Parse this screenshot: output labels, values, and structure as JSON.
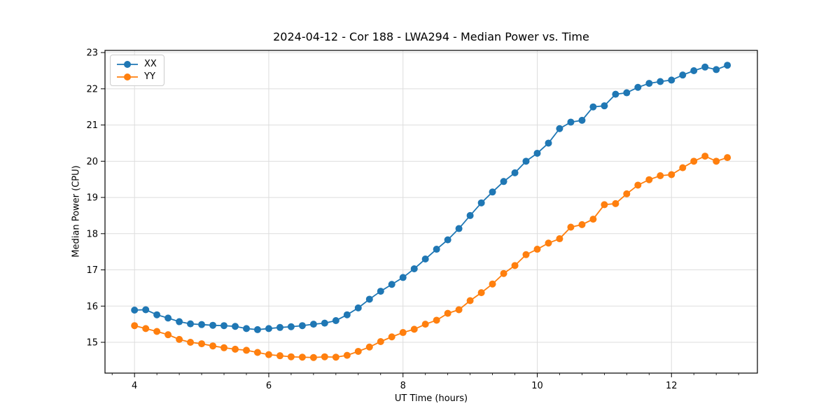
{
  "figure": {
    "title": "2024-04-12 - Cor 188 - LWA294 - Median Power vs. Time",
    "xlabel": "UT Time (hours)",
    "ylabel": "Median Power (CPU)"
  },
  "chart_data": {
    "type": "line",
    "title": "2024-04-12 - Cor 188 - LWA294 - Median Power vs. Time",
    "xlabel": "UT Time (hours)",
    "ylabel": "Median Power (CPU)",
    "xlim": [
      3.56,
      13.28
    ],
    "ylim": [
      14.15,
      23.06
    ],
    "xticks": [
      4,
      6,
      8,
      10,
      12
    ],
    "yticks": [
      15,
      16,
      17,
      18,
      19,
      20,
      21,
      22,
      23
    ],
    "x_minor_tick_step": 0.33333,
    "grid": true,
    "legend_position": "upper left",
    "background": "#ffffff",
    "grid_color": "#dddddd",
    "x": [
      4.0,
      4.167,
      4.333,
      4.5,
      4.667,
      4.833,
      5.0,
      5.167,
      5.333,
      5.5,
      5.667,
      5.833,
      6.0,
      6.167,
      6.333,
      6.5,
      6.667,
      6.833,
      7.0,
      7.167,
      7.333,
      7.5,
      7.667,
      7.833,
      8.0,
      8.167,
      8.333,
      8.5,
      8.667,
      8.833,
      9.0,
      9.167,
      9.333,
      9.5,
      9.667,
      9.833,
      10.0,
      10.167,
      10.333,
      10.5,
      10.667,
      10.833,
      11.0,
      11.167,
      11.333,
      11.5,
      11.667,
      11.833,
      12.0,
      12.167,
      12.333,
      12.5,
      12.667,
      12.833
    ],
    "series": [
      {
        "name": "XX",
        "color": "#1f77b4",
        "values": [
          15.89,
          15.9,
          15.76,
          15.67,
          15.57,
          15.51,
          15.49,
          15.47,
          15.46,
          15.44,
          15.38,
          15.35,
          15.38,
          15.41,
          15.43,
          15.46,
          15.5,
          15.53,
          15.6,
          15.76,
          15.95,
          16.19,
          16.41,
          16.6,
          16.79,
          17.03,
          17.3,
          17.57,
          17.83,
          18.14,
          18.5,
          18.85,
          19.15,
          19.44,
          19.68,
          20.0,
          20.22,
          20.5,
          20.9,
          21.08,
          21.13,
          21.5,
          21.53,
          21.85,
          21.89,
          22.04,
          22.15,
          22.2,
          22.24,
          22.38,
          22.5,
          22.6,
          22.53,
          22.65
        ]
      },
      {
        "name": "YY",
        "color": "#ff7f0e",
        "values": [
          15.46,
          15.38,
          15.3,
          15.21,
          15.08,
          15.0,
          14.96,
          14.9,
          14.85,
          14.81,
          14.78,
          14.72,
          14.66,
          14.63,
          14.6,
          14.59,
          14.58,
          14.6,
          14.59,
          14.64,
          14.75,
          14.87,
          15.02,
          15.15,
          15.27,
          15.36,
          15.5,
          15.61,
          15.8,
          15.9,
          16.15,
          16.37,
          16.61,
          16.9,
          17.12,
          17.42,
          17.57,
          17.74,
          17.86,
          18.18,
          18.25,
          18.4,
          18.8,
          18.83,
          19.1,
          19.34,
          19.49,
          19.6,
          19.63,
          19.82,
          20.0,
          20.14,
          20.0,
          20.1
        ]
      }
    ]
  }
}
